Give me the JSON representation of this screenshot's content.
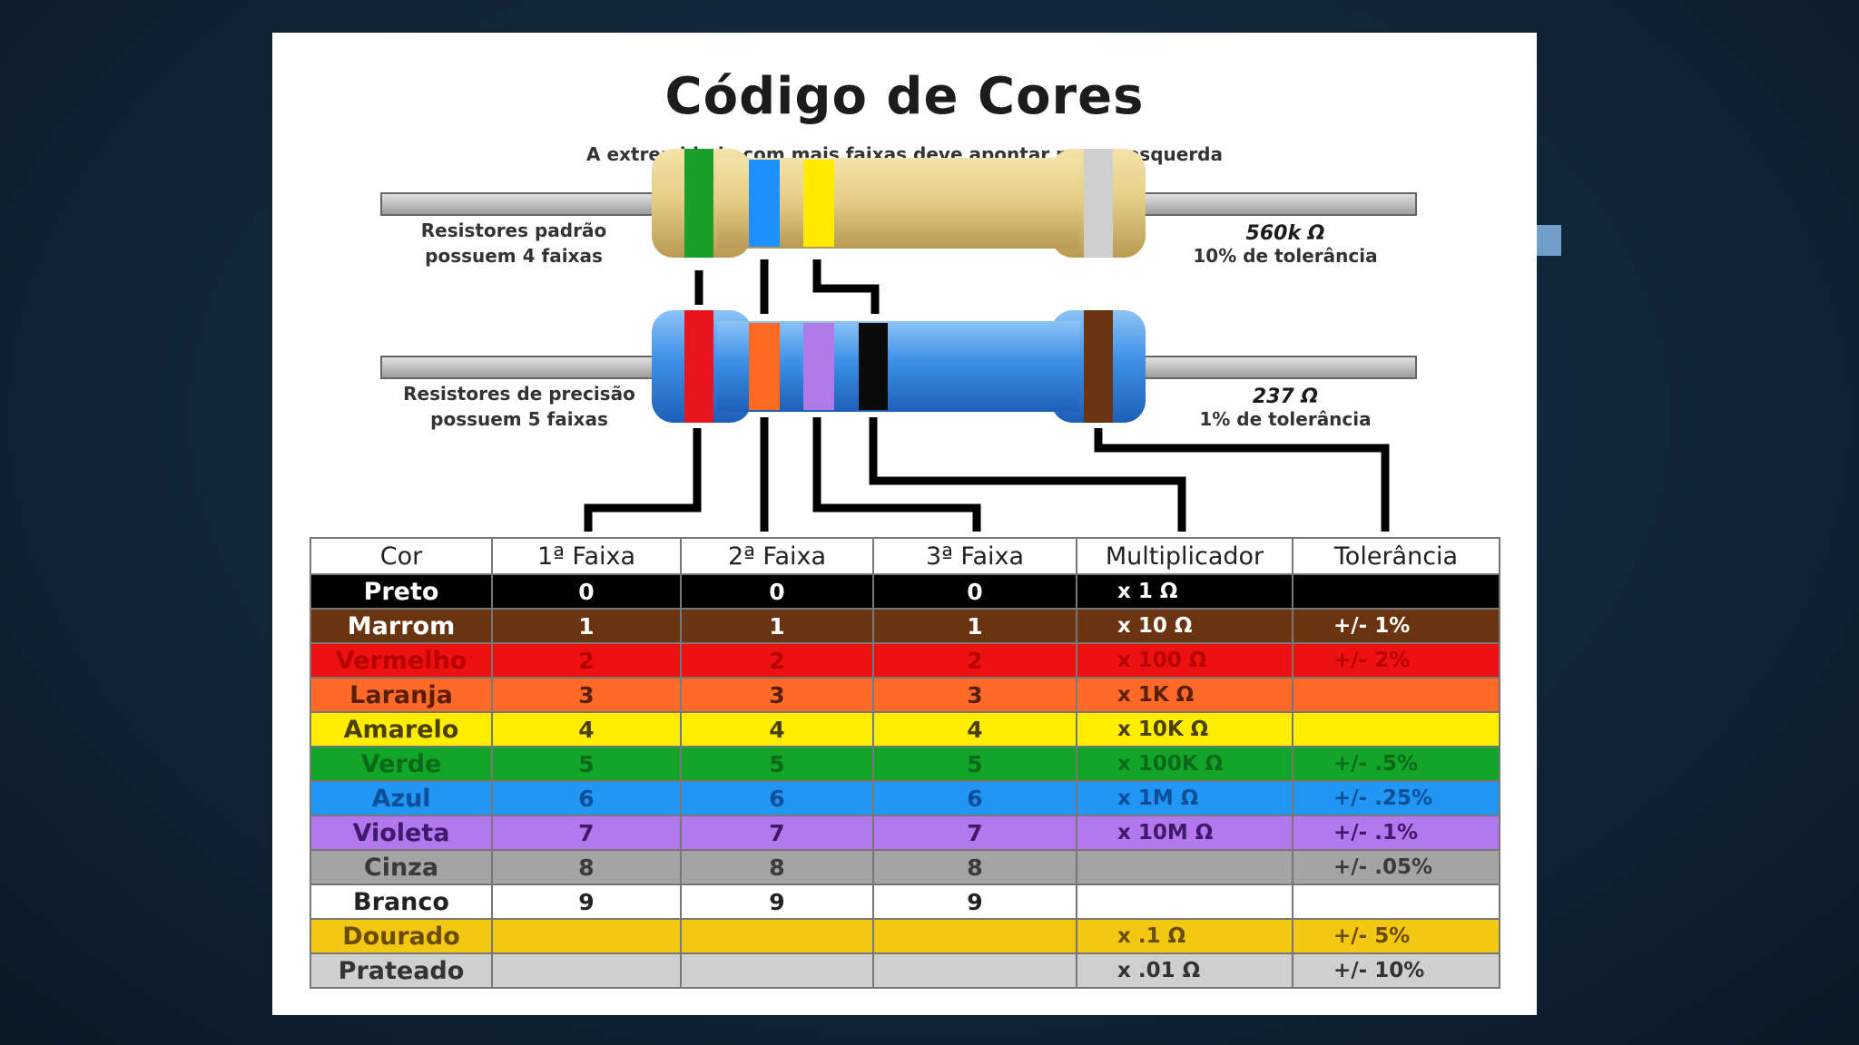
{
  "title": "Código de Cores",
  "subtitle": "A extremidade com mais faixas deve apontar para a esquerda",
  "resistor_standard": {
    "label_line1": "Resistores padrão",
    "label_line2": "possuem 4 faixas",
    "value": "560k Ω",
    "tolerance": "10% de tolerância",
    "band_colors": [
      "#1aa02a",
      "#1e90ff",
      "#ffea00",
      "#cfcfcf"
    ]
  },
  "resistor_precision": {
    "label_line1": "Resistores de precisão",
    "label_line2": "possuem 5 faixas",
    "value": "237 Ω",
    "tolerance": "1% de tolerância",
    "band_colors": [
      "#e8161c",
      "#ff6a22",
      "#b07be6",
      "#0a0a0a",
      "#6b3410"
    ]
  },
  "table": {
    "headers": [
      "Cor",
      "1ª Faixa",
      "2ª Faixa",
      "3ª Faixa",
      "Multiplicador",
      "Tolerância"
    ],
    "rows": [
      {
        "name": "Preto",
        "b1": "0",
        "b2": "0",
        "b3": "0",
        "mul": "x 1 Ω",
        "tol": "",
        "bg": "#000000",
        "fg": "#ffffff"
      },
      {
        "name": "Marrom",
        "b1": "1",
        "b2": "1",
        "b3": "1",
        "mul": "x 10 Ω",
        "tol": "+/-  1%",
        "bg": "#6b3410",
        "fg": "#ffffff"
      },
      {
        "name": "Vermelho",
        "b1": "2",
        "b2": "2",
        "b3": "2",
        "mul": "x 100 Ω",
        "tol": "+/-  2%",
        "bg": "#ee1111",
        "fg": "#b80000"
      },
      {
        "name": "Laranja",
        "b1": "3",
        "b2": "3",
        "b3": "3",
        "mul": "x 1K Ω",
        "tol": "",
        "bg": "#ff6a2a",
        "fg": "#5a1e00"
      },
      {
        "name": "Amarelo",
        "b1": "4",
        "b2": "4",
        "b3": "4",
        "mul": "x 10K Ω",
        "tol": "",
        "bg": "#ffee00",
        "fg": "#4a4000"
      },
      {
        "name": "Verde",
        "b1": "5",
        "b2": "5",
        "b3": "5",
        "mul": "x 100K Ω",
        "tol": "+/-  .5%",
        "bg": "#12a52a",
        "fg": "#0a6a18"
      },
      {
        "name": "Azul",
        "b1": "6",
        "b2": "6",
        "b3": "6",
        "mul": "x 1M Ω",
        "tol": "+/-  .25%",
        "bg": "#2196f3",
        "fg": "#0b4f9a"
      },
      {
        "name": "Violeta",
        "b1": "7",
        "b2": "7",
        "b3": "7",
        "mul": "x 10M Ω",
        "tol": "+/-  .1%",
        "bg": "#b478ee",
        "fg": "#3f1a6a"
      },
      {
        "name": "Cinza",
        "b1": "8",
        "b2": "8",
        "b3": "8",
        "mul": "",
        "tol": "+/-  .05%",
        "bg": "#a4a4a4",
        "fg": "#3a3a3a"
      },
      {
        "name": "Branco",
        "b1": "9",
        "b2": "9",
        "b3": "9",
        "mul": "",
        "tol": "",
        "bg": "#ffffff",
        "fg": "#222222"
      },
      {
        "name": "Dourado",
        "b1": "",
        "b2": "",
        "b3": "",
        "mul": "x .1 Ω",
        "tol": "+/-  5%",
        "bg": "#f2c812",
        "fg": "#6a4c00"
      },
      {
        "name": "Prateado",
        "b1": "",
        "b2": "",
        "b3": "",
        "mul": "x .01 Ω",
        "tol": "+/-  10%",
        "bg": "#cfcfcf",
        "fg": "#333333"
      }
    ]
  }
}
